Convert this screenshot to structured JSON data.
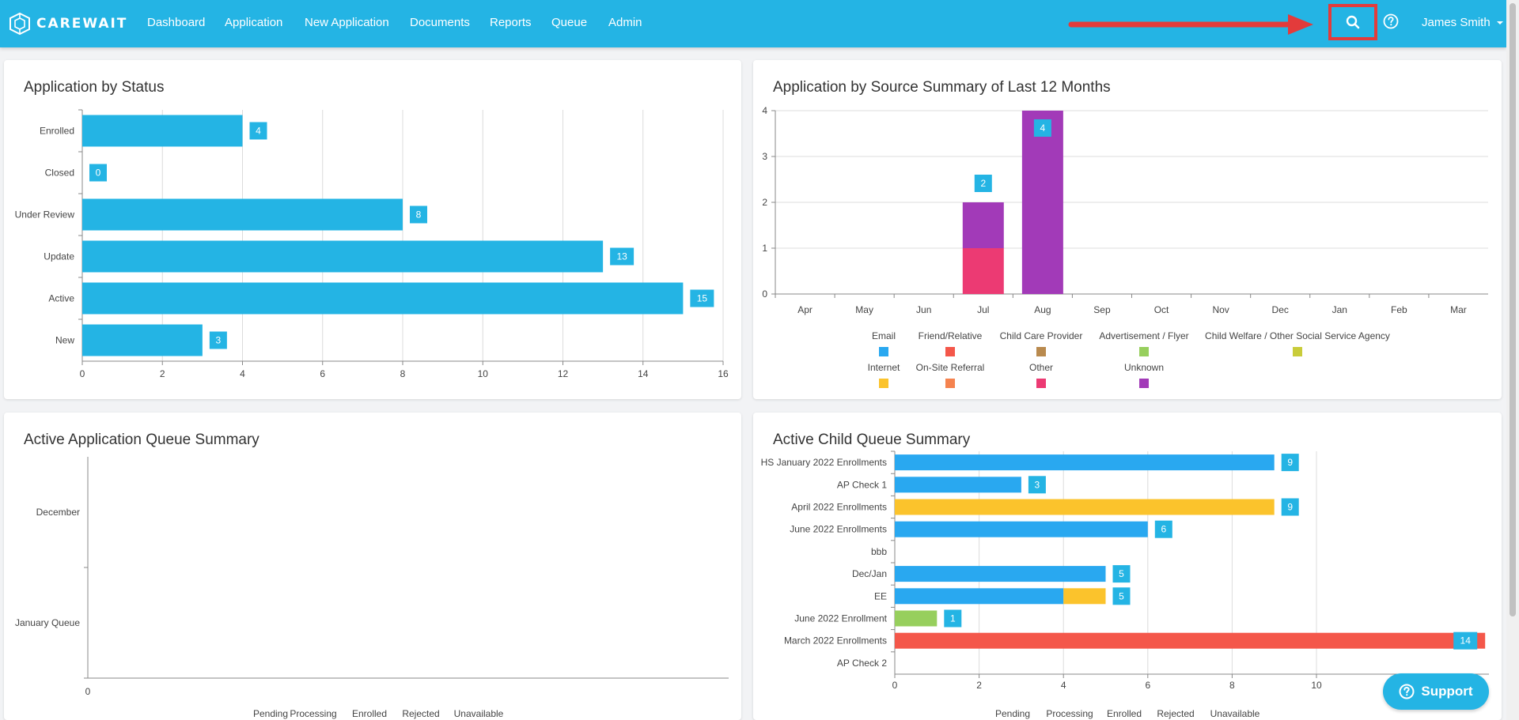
{
  "app": {
    "logo_text": "CAREWAIT"
  },
  "nav": {
    "items": [
      "Dashboard",
      "Application",
      "New Application",
      "Documents",
      "Reports",
      "Queue",
      "Admin"
    ],
    "user_name": "James Smith"
  },
  "support": {
    "label": "Support"
  },
  "colors": {
    "navbar": "#24b4e4",
    "bar_blue": "#24b4e4",
    "highlight_red": "#e33b3b"
  },
  "icons": {
    "search": "search-icon",
    "help": "help-circle-icon",
    "caret": "caret-down-icon",
    "support": "help-circle-icon"
  },
  "status_chart": {
    "title": "Application by Status",
    "chart_data": {
      "type": "bar",
      "orientation": "horizontal",
      "categories": [
        "Enrolled",
        "Closed",
        "Under Review",
        "Update",
        "Active",
        "New"
      ],
      "values": [
        4,
        0,
        8,
        13,
        15,
        3
      ],
      "xlim": [
        0,
        16
      ],
      "xticks": [
        0,
        2,
        4,
        6,
        8,
        10,
        12,
        14,
        16
      ],
      "color": "#24b4e4",
      "grid": true
    }
  },
  "source_chart": {
    "title": "Application by Source Summary of Last 12 Months",
    "chart_data": {
      "type": "bar",
      "stacked": true,
      "categories": [
        "Apr",
        "May",
        "Jun",
        "Jul",
        "Aug",
        "Sep",
        "Oct",
        "Nov",
        "Dec",
        "Jan",
        "Feb",
        "Mar"
      ],
      "ylim": [
        0,
        4
      ],
      "yticks": [
        0,
        1,
        2,
        3,
        4
      ],
      "series": [
        {
          "name": "Email",
          "color": "#29a8f0",
          "values": [
            0,
            0,
            0,
            0,
            0,
            0,
            0,
            0,
            0,
            0,
            0,
            0
          ]
        },
        {
          "name": "Friend/Relative",
          "color": "#f4574a",
          "values": [
            0,
            0,
            0,
            0,
            0,
            0,
            0,
            0,
            0,
            0,
            0,
            0
          ]
        },
        {
          "name": "Child Care Provider",
          "color": "#b98a4e",
          "values": [
            0,
            0,
            0,
            0,
            0,
            0,
            0,
            0,
            0,
            0,
            0,
            0
          ]
        },
        {
          "name": "Advertisement / Flyer",
          "color": "#97cf5d",
          "values": [
            0,
            0,
            0,
            0,
            0,
            0,
            0,
            0,
            0,
            0,
            0,
            0
          ]
        },
        {
          "name": "Child Welfare / Other Social Service Agency",
          "color": "#c9cc3a",
          "values": [
            0,
            0,
            0,
            0,
            0,
            0,
            0,
            0,
            0,
            0,
            0,
            0
          ]
        },
        {
          "name": "Internet",
          "color": "#fbc32c",
          "values": [
            0,
            0,
            0,
            0,
            0,
            0,
            0,
            0,
            0,
            0,
            0,
            0
          ]
        },
        {
          "name": "On-Site Referral",
          "color": "#f5834f",
          "values": [
            0,
            0,
            0,
            0,
            0,
            0,
            0,
            0,
            0,
            0,
            0,
            0
          ]
        },
        {
          "name": "Other",
          "color": "#ec3a73",
          "values": [
            0,
            0,
            0,
            1,
            0,
            0,
            0,
            0,
            0,
            0,
            0,
            0
          ]
        },
        {
          "name": "Unknown",
          "color": "#a23ab8",
          "values": [
            0,
            0,
            0,
            1,
            4,
            0,
            0,
            0,
            0,
            0,
            0,
            0
          ]
        }
      ],
      "totals": [
        0,
        0,
        0,
        2,
        4,
        0,
        0,
        0,
        0,
        0,
        0,
        0
      ],
      "legend": "bottom",
      "grid": true
    }
  },
  "app_queue_chart": {
    "title": "Active Application Queue Summary",
    "chart_data": {
      "type": "bar",
      "orientation": "horizontal",
      "stacked": true,
      "categories": [
        "December",
        "January Queue"
      ],
      "series": [
        {
          "name": "Pending",
          "values": [
            0,
            0
          ]
        },
        {
          "name": "Processing",
          "values": [
            0,
            0
          ]
        },
        {
          "name": "Enrolled",
          "values": [
            0,
            0
          ]
        },
        {
          "name": "Rejected",
          "values": [
            0,
            0
          ]
        },
        {
          "name": "Unavailable",
          "values": [
            0,
            0
          ]
        }
      ],
      "xticks": [
        0
      ],
      "legend": "bottom"
    }
  },
  "child_queue_chart": {
    "title": "Active Child Queue Summary",
    "chart_data": {
      "type": "bar",
      "orientation": "horizontal",
      "stacked": true,
      "categories": [
        "HS January 2022 Enrollments",
        "AP Check 1",
        "April 2022 Enrollments",
        "June 2022 Enrollments",
        "bbb",
        "Dec/Jan",
        "EE",
        "June 2022 Enrollment",
        "March 2022 Enrollments",
        "AP Check 2"
      ],
      "series": [
        {
          "name": "Pending",
          "color": "#29a8f0",
          "values": [
            9,
            3,
            0,
            6,
            0,
            5,
            4,
            0,
            0,
            0
          ]
        },
        {
          "name": "Processing",
          "color": "#fbc32c",
          "values": [
            0,
            0,
            9,
            0,
            0,
            0,
            1,
            0,
            0,
            0
          ]
        },
        {
          "name": "Enrolled",
          "color": "#97cf5d",
          "values": [
            0,
            0,
            0,
            0,
            0,
            0,
            0,
            1,
            0,
            0
          ]
        },
        {
          "name": "Rejected",
          "color": "#f4574a",
          "values": [
            0,
            0,
            0,
            0,
            0,
            0,
            0,
            0,
            14,
            0
          ]
        },
        {
          "name": "Unavailable",
          "values": [
            0,
            0,
            0,
            0,
            0,
            0,
            0,
            0,
            0,
            0
          ]
        }
      ],
      "totals": [
        9,
        3,
        9,
        6,
        0,
        5,
        5,
        1,
        14,
        0
      ],
      "xticks": [
        0,
        2,
        4,
        6,
        8,
        10
      ],
      "xlim": [
        0,
        14
      ],
      "legend": "bottom"
    }
  }
}
